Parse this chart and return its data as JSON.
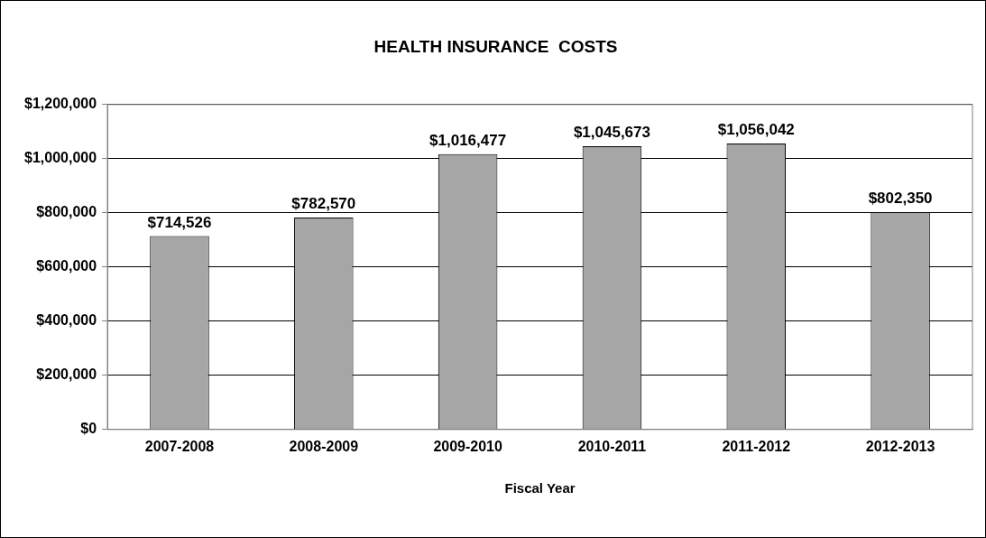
{
  "chart_data": {
    "type": "bar",
    "title": "HEALTH INSURANCE  COSTS",
    "xlabel": "Fiscal Year",
    "categories": [
      "2007-2008",
      "2008-2009",
      "2009-2010",
      "2010-2011",
      "2011-2012",
      "2012-2013"
    ],
    "values": [
      714526,
      782570,
      1016477,
      1045673,
      1056042,
      802350
    ],
    "value_labels": [
      "$714,526",
      "$782,570",
      "$1,016,477",
      "$1,045,673",
      "$1,056,042",
      "$802,350"
    ],
    "color": "#a6a6a6",
    "ylim": [
      0,
      1200000
    ],
    "yticks": [
      {
        "value": 0,
        "label": "$0"
      },
      {
        "value": 200000,
        "label": "$200,000"
      },
      {
        "value": 400000,
        "label": "$400,000"
      },
      {
        "value": 600000,
        "label": "$600,000"
      },
      {
        "value": 800000,
        "label": "$800,000"
      },
      {
        "value": 1000000,
        "label": "$1,000,000"
      },
      {
        "value": 1200000,
        "label": "$1,200,000"
      }
    ],
    "grid": "y",
    "legend": false
  }
}
